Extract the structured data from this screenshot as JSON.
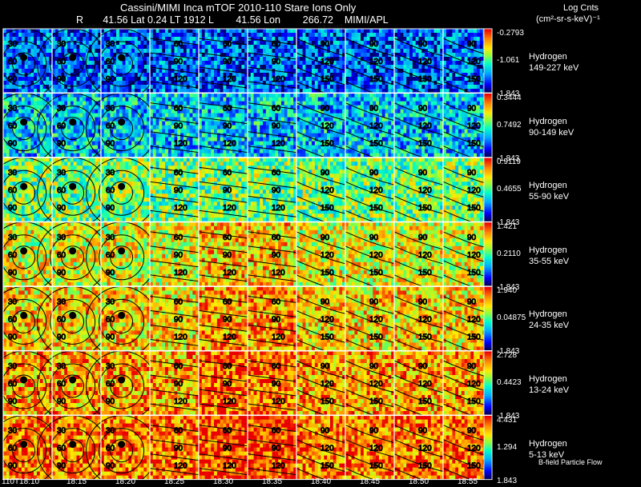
{
  "title": "Cassini/MIMI Inca mTOF  2010-110   Stare   Ions Only",
  "header": {
    "r_label": "R",
    "r_value": "41.56",
    "lat_label": "Lat",
    "lat_value": "0.24",
    "lt_label": "LT",
    "lt_value": "1912",
    "l_label": "L",
    "l_value": "41.56",
    "lon_label": "Lon",
    "lon_value": "266.72",
    "institution": "MIMI/APL"
  },
  "overlay_labels": [
    "satur",
    "saturn",
    "sky-wl"
  ],
  "colorbar": {
    "title": "Log Cnts",
    "units": "(cm²-sr-s-keV)⁻¹",
    "colors": [
      "#ff0000",
      "#ff8800",
      "#ffee00",
      "#88ff44",
      "#00ffcc",
      "#00aaff",
      "#0000ff",
      "#000066"
    ]
  },
  "footnote": "B-field Particle Flow",
  "chart_data": {
    "type": "heatmap",
    "title": "Cassini/MIMI Inca mTOF 2010-110 Stare Ions Only",
    "xlabel": "Time (UT)",
    "x_ticks": [
      "110T18:10",
      "18:15",
      "18:20",
      "18:25",
      "18:30",
      "18:35",
      "18:40",
      "18:45",
      "18:50",
      "18:55"
    ],
    "contour_labels": [
      "30",
      "60",
      "90",
      "120",
      "150",
      "180"
    ],
    "panels": [
      {
        "species": "Hydrogen",
        "energy": "149-227 keV",
        "cmax": "-0.2793",
        "cmid": "-1.061",
        "cmin": "-1.843",
        "level": 0.22
      },
      {
        "species": "Hydrogen",
        "energy": "90-149 keV",
        "cmax": "0.3444",
        "cmid": "0.7492",
        "cmin": "-1.843",
        "level": 0.35
      },
      {
        "species": "Hydrogen",
        "energy": "55-90 keV",
        "cmax": "0.9119",
        "cmid": "0.4655",
        "cmin": "-1.843",
        "level": 0.55
      },
      {
        "species": "Hydrogen",
        "energy": "35-55 keV",
        "cmax": "1.421",
        "cmid": "0.2110",
        "cmin": "-1.843",
        "level": 0.68
      },
      {
        "species": "Hydrogen",
        "energy": "24-35 keV",
        "cmax": "1.940",
        "cmid": "0.04875",
        "cmin": "-1.843",
        "level": 0.74
      },
      {
        "species": "Hydrogen",
        "energy": "13-24 keV",
        "cmax": "2.728",
        "cmid": "0.4423",
        "cmin": "-1.843",
        "level": 0.8
      },
      {
        "species": "Hydrogen",
        "energy": "5-13 keV",
        "cmax": "4.431",
        "cmid": "1.294",
        "cmin": "1.843",
        "level": 0.86
      }
    ]
  }
}
